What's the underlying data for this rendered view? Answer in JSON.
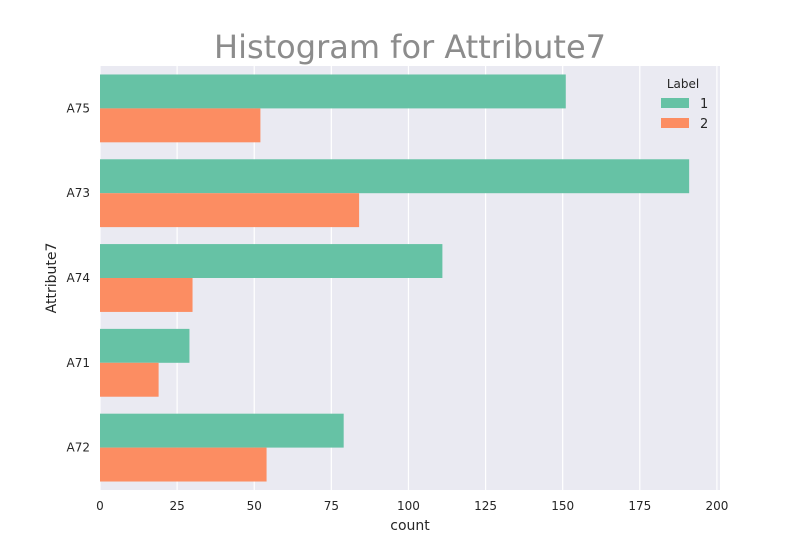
{
  "chart_data": {
    "type": "bar",
    "orientation": "horizontal",
    "title": "Histogram for Attribute7",
    "xlabel": "count",
    "ylabel": "Attribute7",
    "categories": [
      "A75",
      "A73",
      "A74",
      "A71",
      "A72"
    ],
    "series": [
      {
        "name": "1",
        "color": "#66c2a5",
        "values": [
          151,
          191,
          111,
          29,
          79
        ]
      },
      {
        "name": "2",
        "color": "#fc8d62",
        "values": [
          52,
          84,
          30,
          19,
          54
        ]
      }
    ],
    "xlim": [
      0,
      201
    ],
    "xticks": [
      0,
      25,
      50,
      75,
      100,
      125,
      150,
      175,
      200
    ],
    "grid": true,
    "legend": {
      "title": "Label",
      "placement": "top-right"
    },
    "background": "#eaeaf2"
  }
}
